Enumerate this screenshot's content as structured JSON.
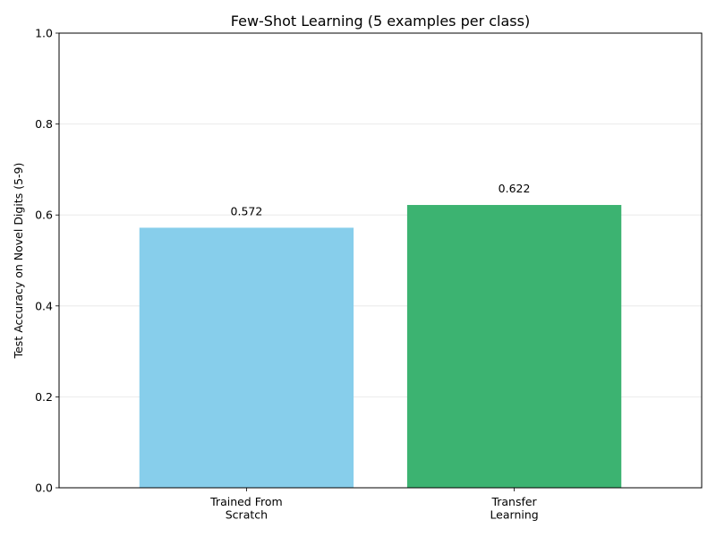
{
  "chart_data": {
    "type": "bar",
    "title": "Few-Shot Learning (5 examples per class)",
    "xlabel": "",
    "ylabel": "Test Accuracy on Novel Digits (5-9)",
    "categories": [
      [
        "Trained From",
        "Scratch"
      ],
      [
        "Transfer",
        "Learning"
      ]
    ],
    "values": [
      0.572,
      0.622
    ],
    "data_labels": [
      "0.572",
      "0.622"
    ],
    "colors": [
      "#87ceeb",
      "#3cb371"
    ],
    "ylim": [
      0,
      1
    ],
    "yticks": [
      0.0,
      0.2,
      0.4,
      0.6,
      0.8,
      1.0
    ],
    "ytick_labels": [
      "0.0",
      "0.2",
      "0.4",
      "0.6",
      "0.8",
      "1.0"
    ],
    "grid": true,
    "legend": "none"
  }
}
